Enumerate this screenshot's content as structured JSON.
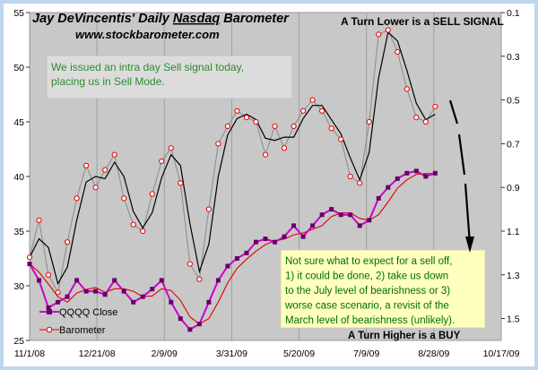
{
  "chart_data": {
    "type": "line",
    "title": "Jay DeVincentis' Daily Nasdaq Barometer",
    "title_underlined_word": "Nasdaq",
    "subtitle": "www.stockbarometer.com",
    "x_tick_labels": [
      "11/1/08",
      "12/21/08",
      "2/9/09",
      "3/31/09",
      "5/20/09",
      "7/9/09",
      "8/28/09",
      "10/17/09"
    ],
    "y_left": {
      "ticks": [
        25,
        30,
        35,
        40,
        45,
        50,
        55
      ],
      "range": [
        25,
        55
      ]
    },
    "y_right": {
      "ticks": [
        0.1,
        0.3,
        0.5,
        0.7,
        0.9,
        1.1,
        1.3,
        1.5
      ],
      "range": [
        0.1,
        1.6
      ],
      "inverted": true
    },
    "grid": "vertical",
    "legend": {
      "position": "bottom-left",
      "entries": [
        {
          "label": "QQQQ Close",
          "color": "#cc00cc",
          "marker": "square"
        },
        {
          "label": "Barometer",
          "color": "#e00000",
          "marker": "circle"
        }
      ]
    },
    "series": [
      {
        "name": "Barometer",
        "axis": "right",
        "color": "#e00000",
        "x": [
          "2008-11-01",
          "2008-11-08",
          "2008-11-15",
          "2008-11-22",
          "2008-11-29",
          "2008-12-06",
          "2008-12-13",
          "2008-12-20",
          "2008-12-27",
          "2009-01-03",
          "2009-01-10",
          "2009-01-17",
          "2009-01-24",
          "2009-01-31",
          "2009-02-07",
          "2009-02-14",
          "2009-02-21",
          "2009-02-28",
          "2009-03-07",
          "2009-03-14",
          "2009-03-21",
          "2009-03-28",
          "2009-04-04",
          "2009-04-11",
          "2009-04-18",
          "2009-04-25",
          "2009-05-02",
          "2009-05-09",
          "2009-05-16",
          "2009-05-23",
          "2009-05-30",
          "2009-06-06",
          "2009-06-13",
          "2009-06-20",
          "2009-06-27",
          "2009-07-04",
          "2009-07-11",
          "2009-07-18",
          "2009-07-25",
          "2009-08-01",
          "2009-08-08",
          "2009-08-15",
          "2009-08-22",
          "2009-08-29"
        ],
        "values": [
          1.22,
          1.05,
          1.3,
          1.38,
          1.15,
          0.95,
          0.8,
          0.9,
          0.82,
          0.75,
          0.95,
          1.07,
          1.1,
          0.93,
          0.78,
          0.72,
          0.88,
          1.25,
          1.32,
          1.0,
          0.7,
          0.62,
          0.55,
          0.58,
          0.6,
          0.75,
          0.62,
          0.72,
          0.62,
          0.55,
          0.5,
          0.55,
          0.63,
          0.68,
          0.85,
          0.88,
          0.6,
          0.2,
          0.18,
          0.28,
          0.45,
          0.58,
          0.6,
          0.53
        ]
      },
      {
        "name": "QQQQ Close",
        "axis": "left",
        "color": "#cc00cc",
        "x": [
          "2008-11-01",
          "2008-11-08",
          "2008-11-15",
          "2008-11-22",
          "2008-11-29",
          "2008-12-06",
          "2008-12-13",
          "2008-12-20",
          "2008-12-27",
          "2009-01-03",
          "2009-01-10",
          "2009-01-17",
          "2009-01-24",
          "2009-01-31",
          "2009-02-07",
          "2009-02-14",
          "2009-02-21",
          "2009-02-28",
          "2009-03-07",
          "2009-03-14",
          "2009-03-21",
          "2009-03-28",
          "2009-04-04",
          "2009-04-11",
          "2009-04-18",
          "2009-04-25",
          "2009-05-02",
          "2009-05-09",
          "2009-05-16",
          "2009-05-23",
          "2009-05-30",
          "2009-06-06",
          "2009-06-13",
          "2009-06-20",
          "2009-06-27",
          "2009-07-04",
          "2009-07-11",
          "2009-07-18",
          "2009-07-25",
          "2009-08-01",
          "2009-08-08",
          "2009-08-15",
          "2009-08-22",
          "2009-08-29"
        ],
        "values": [
          32.0,
          30.5,
          28.0,
          28.5,
          29.0,
          30.5,
          29.5,
          29.5,
          29.2,
          30.5,
          29.5,
          28.5,
          29.0,
          29.7,
          30.5,
          28.5,
          27.0,
          26.0,
          26.5,
          28.5,
          30.5,
          31.8,
          32.5,
          33.0,
          34.0,
          34.3,
          34.0,
          34.5,
          35.5,
          34.5,
          35.5,
          36.5,
          37.0,
          36.5,
          36.5,
          35.5,
          36.0,
          38.0,
          39.0,
          39.8,
          40.3,
          40.5,
          40.0,
          40.3
        ]
      }
    ],
    "annotations": {
      "sell_signal": "A Turn Lower is a SELL  SIGNAL",
      "buy_signal": "A Turn Higher is a BUY",
      "intraday_note": [
        "We issued an intra day Sell signal today,",
        "placing us in Sell Mode."
      ],
      "sell_off_note": [
        "Not sure what to expect for a sell off,",
        "1) it could be done, 2) take us down",
        "to the July level of bearishness or 3)",
        "worse case scenario, a revisit of the",
        "March level of bearishness (unlikely)."
      ]
    },
    "colors": {
      "frame_blue": "#bfd6ef",
      "plot_background": "#c8c8c8",
      "title_color": "#000000",
      "note_box": "#dcdcdc",
      "note_text": "#2e8b2e",
      "sell_note_box": "#ffffc0",
      "sell_note_text": "#007000",
      "barometer_line": "#e00000",
      "black_line": "#000000",
      "qqqq_color": "#cc00cc"
    }
  }
}
